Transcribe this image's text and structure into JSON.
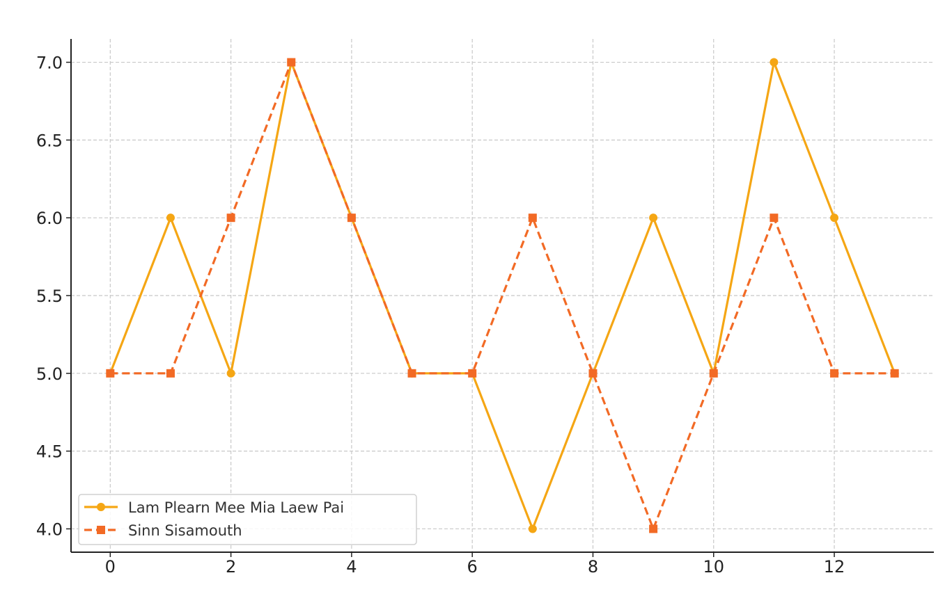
{
  "chart_data": {
    "type": "line",
    "title": "",
    "xlabel": "",
    "ylabel": "",
    "x": [
      0,
      1,
      2,
      3,
      4,
      5,
      6,
      7,
      8,
      9,
      10,
      11,
      12,
      13
    ],
    "xlim": [
      -0.65,
      13.65
    ],
    "ylim": [
      3.85,
      7.15
    ],
    "xticks": [
      0,
      2,
      4,
      6,
      8,
      10,
      12
    ],
    "yticks": [
      4.0,
      4.5,
      5.0,
      5.5,
      6.0,
      6.5,
      7.0
    ],
    "xtick_labels": [
      "0",
      "2",
      "4",
      "6",
      "8",
      "10",
      "12"
    ],
    "ytick_labels": [
      "4.0",
      "4.5",
      "5.0",
      "5.5",
      "6.0",
      "6.5",
      "7.0"
    ],
    "grid": true,
    "legend_position": "bottom-left",
    "series": [
      {
        "name": "Lam Plearn Mee Mia Laew Pai",
        "values": [
          5,
          6,
          5,
          7,
          6,
          5,
          5,
          4,
          5,
          6,
          5,
          7,
          6,
          5
        ],
        "color": "#F5A614",
        "line_style": "solid",
        "marker": "circle"
      },
      {
        "name": "Sinn Sisamouth",
        "values": [
          5,
          5,
          6,
          7,
          6,
          5,
          5,
          6,
          5,
          4,
          5,
          6,
          5,
          5
        ],
        "color": "#F26A25",
        "line_style": "dashed",
        "marker": "square"
      }
    ]
  }
}
